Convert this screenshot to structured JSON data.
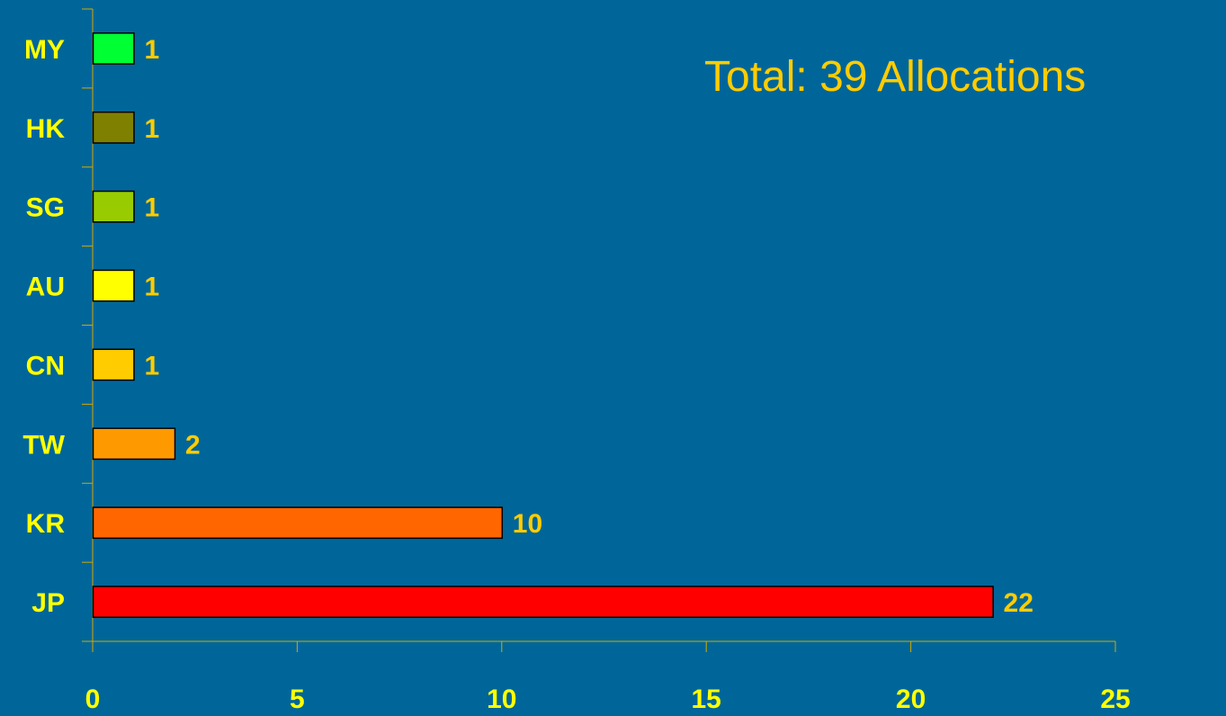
{
  "annotation": "Total: 39 Allocations",
  "chart_data": {
    "type": "bar",
    "orientation": "horizontal",
    "categories": [
      "MY",
      "HK",
      "SG",
      "AU",
      "CN",
      "TW",
      "KR",
      "JP"
    ],
    "values": [
      1,
      1,
      1,
      1,
      1,
      2,
      10,
      22
    ],
    "bar_colors": [
      "#00FF33",
      "#808000",
      "#99CC00",
      "#FFFF00",
      "#FFCC00",
      "#FF9900",
      "#FF6600",
      "#FF0000"
    ],
    "x_ticks": [
      0,
      5,
      10,
      15,
      20,
      25
    ],
    "xlim": [
      0,
      25
    ],
    "title": "",
    "xlabel": "",
    "ylabel": "",
    "grid": false,
    "legend": false,
    "colors": {
      "background": "#006699",
      "category_label": "#FFFF00",
      "value_label": "#FFCC00",
      "tick_label": "#FFFF00",
      "axis": "#D4AA00"
    }
  }
}
